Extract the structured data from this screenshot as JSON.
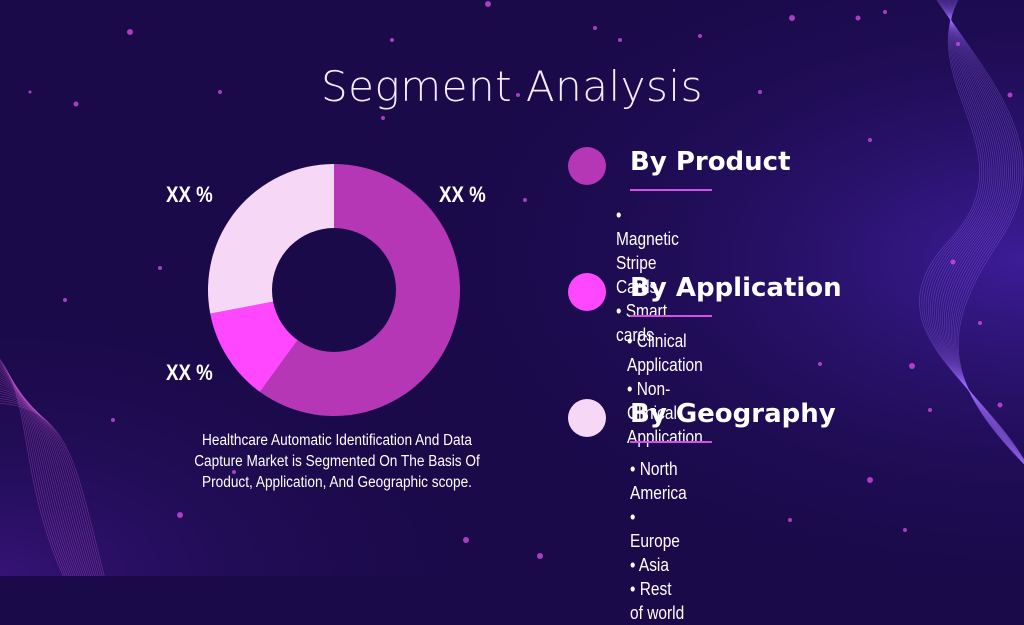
{
  "title": "Segment Analysis",
  "caption": "Healthcare Automatic Identification And Data Capture Market is Segmented On The Basis Of Product, Application, And Geographic scope.",
  "segments": [
    {
      "heading": "By Product",
      "color": "#b537b5",
      "items": [
        "Magnetic Stripe Cards",
        "Smart cards"
      ]
    },
    {
      "heading": "By Application",
      "color": "#ff47ff",
      "items": [
        "Clinical Application",
        "Non-Clinical Application"
      ]
    },
    {
      "heading": "By Geography",
      "color": "#f6d7f6",
      "items": [
        "North America",
        "Europe",
        "Asia",
        "Rest of world"
      ]
    }
  ],
  "chart_data": {
    "type": "pie",
    "style": "donut",
    "slice_labels": [
      "XX %",
      "XX %",
      "XX %"
    ],
    "slices": [
      {
        "value": 60,
        "color": "#b537b5"
      },
      {
        "value": 12,
        "color": "#ff47ff"
      },
      {
        "value": 28,
        "color": "#f6d7f6"
      }
    ]
  },
  "colors": {
    "background": "#1a0a4a",
    "accent": "#d64fe6"
  }
}
